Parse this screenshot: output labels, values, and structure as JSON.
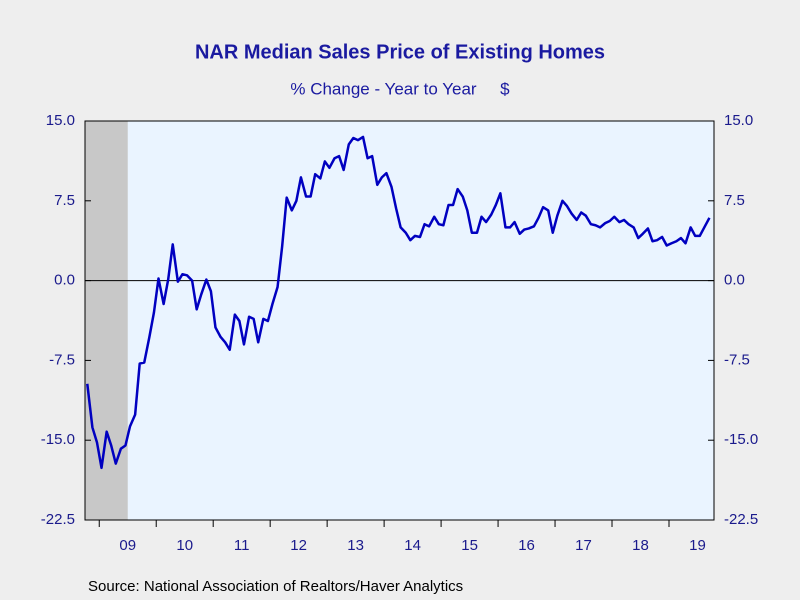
{
  "chart_data": {
    "type": "line",
    "title": "NAR Median Sales Price of Existing Homes",
    "subtitle": "% Change - Year to Year     $",
    "source": "Source:  National Association of Realtors/Haver Analytics",
    "xlim": [
      2008.75,
      2019.79
    ],
    "xticks": [
      {
        "value": 2009.5,
        "label": "09"
      },
      {
        "value": 2010.5,
        "label": "10"
      },
      {
        "value": 2011.5,
        "label": "11"
      },
      {
        "value": 2012.5,
        "label": "12"
      },
      {
        "value": 2013.5,
        "label": "13"
      },
      {
        "value": 2014.5,
        "label": "14"
      },
      {
        "value": 2015.5,
        "label": "15"
      },
      {
        "value": 2016.5,
        "label": "16"
      },
      {
        "value": 2017.5,
        "label": "17"
      },
      {
        "value": 2018.5,
        "label": "18"
      },
      {
        "value": 2019.5,
        "label": "19"
      }
    ],
    "ylim": [
      -22.5,
      15
    ],
    "yticks": [
      {
        "value": 15,
        "label": "15.0"
      },
      7.5,
      {
        "value": 0,
        "label": "0.0"
      },
      -7.5,
      {
        "value": -15,
        "label": "-15.0"
      },
      -22.5
    ],
    "recession": [
      2008.75,
      2009.5
    ],
    "x": [
      2008.79,
      2008.88,
      2008.96,
      2009.04,
      2009.13,
      2009.21,
      2009.29,
      2009.38,
      2009.46,
      2009.54,
      2009.63,
      2009.71,
      2009.79,
      2009.88,
      2009.96,
      2010.04,
      2010.13,
      2010.21,
      2010.29,
      2010.38,
      2010.46,
      2010.54,
      2010.63,
      2010.71,
      2010.79,
      2010.88,
      2010.96,
      2011.04,
      2011.13,
      2011.21,
      2011.29,
      2011.38,
      2011.46,
      2011.54,
      2011.63,
      2011.71,
      2011.79,
      2011.88,
      2011.96,
      2012.04,
      2012.13,
      2012.21,
      2012.29,
      2012.38,
      2012.46,
      2012.54,
      2012.63,
      2012.71,
      2012.79,
      2012.88,
      2012.96,
      2013.04,
      2013.13,
      2013.21,
      2013.29,
      2013.38,
      2013.46,
      2013.54,
      2013.63,
      2013.71,
      2013.79,
      2013.88,
      2013.96,
      2014.04,
      2014.13,
      2014.21,
      2014.29,
      2014.38,
      2014.46,
      2014.54,
      2014.63,
      2014.71,
      2014.79,
      2014.88,
      2014.96,
      2015.04,
      2015.13,
      2015.21,
      2015.29,
      2015.38,
      2015.46,
      2015.54,
      2015.63,
      2015.71,
      2015.79,
      2015.88,
      2015.96,
      2016.04,
      2016.13,
      2016.21,
      2016.29,
      2016.38,
      2016.46,
      2016.54,
      2016.63,
      2016.71,
      2016.79,
      2016.88,
      2016.96,
      2017.04,
      2017.13,
      2017.21,
      2017.29,
      2017.38,
      2017.46,
      2017.54,
      2017.63,
      2017.71,
      2017.79,
      2017.88,
      2017.96,
      2018.04,
      2018.13,
      2018.21,
      2018.29,
      2018.38,
      2018.46,
      2018.54,
      2018.63,
      2018.71,
      2018.79,
      2018.88,
      2018.96,
      2019.04,
      2019.13,
      2019.21,
      2019.29,
      2019.38,
      2019.46,
      2019.54,
      2019.63,
      2019.71
    ],
    "series": [
      {
        "color": "#0000c0",
        "values": [
          -9.7,
          -13.8,
          -15.2,
          -17.6,
          -14.2,
          -15.5,
          -17.2,
          -15.8,
          -15.5,
          -13.7,
          -12.6,
          -7.8,
          -7.7,
          -5.3,
          -3.0,
          0.2,
          -2.2,
          0.1,
          3.4,
          -0.1,
          0.6,
          0.5,
          0.0,
          -2.7,
          -1.3,
          0.1,
          -1.0,
          -4.4,
          -5.3,
          -5.8,
          -6.5,
          -3.2,
          -3.8,
          -6.0,
          -3.4,
          -3.6,
          -5.8,
          -3.6,
          -3.8,
          -2.2,
          -0.6,
          3.2,
          7.8,
          6.6,
          7.5,
          9.7,
          7.9,
          7.9,
          10.0,
          9.6,
          11.2,
          10.6,
          11.5,
          11.7,
          10.4,
          12.8,
          13.4,
          13.2,
          13.5,
          11.5,
          11.7,
          9.0,
          9.7,
          10.1,
          8.8,
          6.8,
          5.0,
          4.5,
          3.8,
          4.2,
          4.1,
          5.3,
          5.1,
          6.0,
          5.3,
          5.2,
          7.1,
          7.1,
          8.6,
          7.9,
          6.6,
          4.5,
          4.5,
          6.0,
          5.5,
          6.2,
          7.1,
          8.2,
          5.0,
          5.0,
          5.5,
          4.4,
          4.8,
          4.9,
          5.1,
          5.9,
          6.9,
          6.6,
          4.5,
          6.1,
          7.5,
          7.0,
          6.3,
          5.7,
          6.4,
          6.1,
          5.3,
          5.2,
          5.0,
          5.4,
          5.6,
          6.0,
          5.5,
          5.7,
          5.3,
          5.0,
          4.0,
          4.4,
          4.9,
          3.7,
          3.8,
          4.1,
          3.3,
          3.5,
          3.7,
          4.0,
          3.5,
          5.0,
          4.2,
          4.2,
          5.1,
          5.9
        ]
      }
    ]
  }
}
